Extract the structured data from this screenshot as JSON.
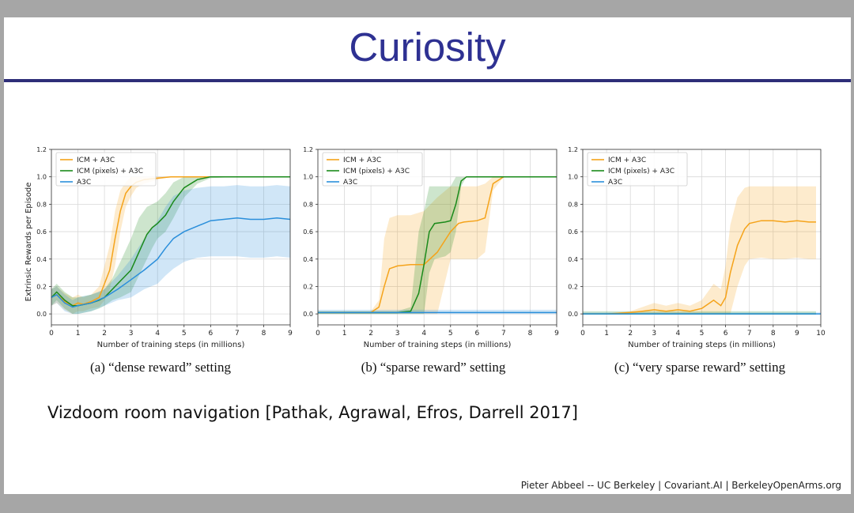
{
  "slide": {
    "title": "Curiosity",
    "citation": "Vizdoom room navigation [Pathak, Agrawal, Efros, Darrell 2017]",
    "footer": "Pieter Abbeel -- UC Berkeley | Covariant.AI | BerkeleyOpenArms.org"
  },
  "colors": {
    "title": "#2e3192",
    "rule": "#2e2e78",
    "icm": "#f5a31a",
    "icm_pixels": "#1a8a1a",
    "a3c": "#2b8fdb"
  },
  "chart_data": [
    {
      "type": "line",
      "caption": "(a) “dense reward” setting",
      "xlabel": "Number of training steps (in millions)",
      "ylabel": "Extrinsic Rewards per Episode",
      "xlim": [
        0,
        9
      ],
      "ylim": [
        -0.08,
        1.2
      ],
      "xticks": [
        "0",
        "1",
        "2",
        "3",
        "4",
        "5",
        "6",
        "7",
        "8",
        "9"
      ],
      "yticks": [
        "0.0",
        "0.2",
        "0.4",
        "0.6",
        "0.8",
        "1.0",
        "1.2"
      ],
      "grid": true,
      "legend_position": "top-left",
      "series": [
        {
          "name": "ICM + A3C",
          "x": [
            0,
            0.2,
            0.5,
            0.8,
            1.0,
            1.2,
            1.5,
            1.8,
            2.0,
            2.2,
            2.4,
            2.6,
            2.8,
            3.0,
            3.2,
            3.5,
            4.0,
            4.5,
            5.0,
            6.0,
            7.0,
            8.0,
            9.0
          ],
          "y": [
            0.12,
            0.14,
            0.09,
            0.06,
            0.08,
            0.07,
            0.09,
            0.12,
            0.22,
            0.32,
            0.55,
            0.75,
            0.88,
            0.93,
            0.96,
            0.98,
            0.99,
            1.0,
            1.0,
            1.0,
            1.0,
            1.0,
            1.0
          ],
          "lower": [
            0.06,
            0.08,
            0.03,
            0.0,
            0.02,
            0.02,
            0.04,
            0.05,
            0.1,
            0.18,
            0.35,
            0.6,
            0.78,
            0.86,
            0.92,
            0.95,
            0.98,
            1.0,
            1.0,
            1.0,
            1.0,
            1.0,
            1.0
          ],
          "upper": [
            0.18,
            0.2,
            0.15,
            0.12,
            0.14,
            0.12,
            0.14,
            0.2,
            0.35,
            0.5,
            0.75,
            0.9,
            0.96,
            1.0,
            1.0,
            1.0,
            1.0,
            1.0,
            1.0,
            1.0,
            1.0,
            1.0,
            1.0
          ]
        },
        {
          "name": "ICM (pixels) + A3C",
          "x": [
            0,
            0.2,
            0.5,
            0.8,
            1.0,
            1.5,
            1.8,
            2.0,
            2.3,
            2.6,
            3.0,
            3.3,
            3.6,
            3.8,
            4.0,
            4.3,
            4.6,
            5.0,
            5.5,
            6.0,
            7.0,
            8.0,
            9.0
          ],
          "y": [
            0.12,
            0.16,
            0.1,
            0.06,
            0.06,
            0.08,
            0.1,
            0.12,
            0.18,
            0.24,
            0.32,
            0.45,
            0.58,
            0.63,
            0.66,
            0.72,
            0.82,
            0.92,
            0.98,
            1.0,
            1.0,
            1.0,
            1.0
          ],
          "lower": [
            0.06,
            0.1,
            0.04,
            0.0,
            0.0,
            0.02,
            0.04,
            0.06,
            0.1,
            0.12,
            0.16,
            0.28,
            0.4,
            0.48,
            0.55,
            0.6,
            0.7,
            0.85,
            0.95,
            0.99,
            1.0,
            1.0,
            1.0
          ],
          "upper": [
            0.18,
            0.22,
            0.16,
            0.12,
            0.12,
            0.14,
            0.16,
            0.18,
            0.26,
            0.38,
            0.55,
            0.7,
            0.78,
            0.8,
            0.82,
            0.88,
            0.96,
            1.0,
            1.0,
            1.0,
            1.0,
            1.0,
            1.0
          ]
        },
        {
          "name": "A3C",
          "x": [
            0,
            0.2,
            0.5,
            0.8,
            1.0,
            1.5,
            2.0,
            2.5,
            3.0,
            3.5,
            4.0,
            4.3,
            4.6,
            5.0,
            5.5,
            6.0,
            6.5,
            7.0,
            7.5,
            8.0,
            8.5,
            9.0
          ],
          "y": [
            0.12,
            0.14,
            0.08,
            0.05,
            0.06,
            0.08,
            0.12,
            0.18,
            0.25,
            0.32,
            0.4,
            0.48,
            0.55,
            0.6,
            0.64,
            0.68,
            0.69,
            0.7,
            0.69,
            0.69,
            0.7,
            0.69
          ],
          "lower": [
            0.06,
            0.08,
            0.02,
            0.0,
            0.0,
            0.02,
            0.06,
            0.1,
            0.12,
            0.18,
            0.22,
            0.28,
            0.33,
            0.38,
            0.41,
            0.42,
            0.42,
            0.42,
            0.41,
            0.41,
            0.42,
            0.41
          ],
          "upper": [
            0.18,
            0.2,
            0.14,
            0.1,
            0.12,
            0.14,
            0.18,
            0.28,
            0.4,
            0.55,
            0.68,
            0.78,
            0.86,
            0.9,
            0.92,
            0.93,
            0.93,
            0.94,
            0.93,
            0.93,
            0.94,
            0.93
          ]
        }
      ]
    },
    {
      "type": "line",
      "caption": "(b) “sparse reward” setting",
      "xlabel": "Number of training steps (in millions)",
      "ylabel": "",
      "xlim": [
        0,
        9
      ],
      "ylim": [
        -0.08,
        1.2
      ],
      "xticks": [
        "0",
        "1",
        "2",
        "3",
        "4",
        "5",
        "6",
        "7",
        "8",
        "9"
      ],
      "yticks": [
        "0.0",
        "0.2",
        "0.4",
        "0.6",
        "0.8",
        "1.0",
        "1.2"
      ],
      "grid": true,
      "legend_position": "top-left",
      "series": [
        {
          "name": "ICM + A3C",
          "x": [
            0,
            1.0,
            2.0,
            2.3,
            2.5,
            2.7,
            3.0,
            3.5,
            4.0,
            4.5,
            5.0,
            5.3,
            5.5,
            6.0,
            6.3,
            6.6,
            7.0,
            8.0,
            9.0
          ],
          "y": [
            0.01,
            0.01,
            0.01,
            0.05,
            0.2,
            0.33,
            0.35,
            0.36,
            0.36,
            0.45,
            0.6,
            0.66,
            0.67,
            0.68,
            0.7,
            0.95,
            1.0,
            1.0,
            1.0
          ],
          "lower": [
            0.0,
            0.0,
            0.0,
            0.0,
            0.0,
            0.0,
            0.0,
            0.0,
            0.0,
            0.0,
            0.4,
            0.4,
            0.4,
            0.4,
            0.45,
            0.9,
            1.0,
            1.0,
            1.0
          ],
          "upper": [
            0.02,
            0.02,
            0.02,
            0.1,
            0.55,
            0.7,
            0.72,
            0.72,
            0.75,
            0.85,
            0.93,
            0.93,
            0.93,
            0.93,
            0.95,
            1.0,
            1.0,
            1.0,
            1.0
          ]
        },
        {
          "name": "ICM (pixels) + A3C",
          "x": [
            0,
            1.0,
            2.0,
            3.0,
            3.5,
            3.8,
            4.0,
            4.2,
            4.4,
            4.8,
            5.0,
            5.2,
            5.4,
            5.6,
            6.0,
            7.0,
            8.0,
            9.0
          ],
          "y": [
            0.01,
            0.01,
            0.01,
            0.01,
            0.02,
            0.15,
            0.36,
            0.6,
            0.66,
            0.67,
            0.68,
            0.8,
            0.97,
            1.0,
            1.0,
            1.0,
            1.0,
            1.0
          ],
          "lower": [
            0.0,
            0.0,
            0.0,
            0.0,
            0.0,
            0.0,
            0.0,
            0.3,
            0.4,
            0.42,
            0.45,
            0.6,
            0.93,
            1.0,
            1.0,
            1.0,
            1.0,
            1.0
          ],
          "upper": [
            0.02,
            0.02,
            0.02,
            0.02,
            0.05,
            0.6,
            0.75,
            0.93,
            0.93,
            0.93,
            0.93,
            1.0,
            1.0,
            1.0,
            1.0,
            1.0,
            1.0,
            1.0
          ]
        },
        {
          "name": "A3C",
          "x": [
            0,
            1.0,
            2.0,
            3.0,
            4.0,
            5.0,
            6.0,
            7.0,
            8.0,
            9.0
          ],
          "y": [
            0.01,
            0.01,
            0.01,
            0.01,
            0.01,
            0.01,
            0.01,
            0.01,
            0.01,
            0.01
          ],
          "lower": [
            0.0,
            0.0,
            0.0,
            0.0,
            0.0,
            0.0,
            0.0,
            0.0,
            0.0,
            0.0
          ],
          "upper": [
            0.03,
            0.03,
            0.03,
            0.03,
            0.03,
            0.03,
            0.03,
            0.03,
            0.03,
            0.03
          ]
        }
      ]
    },
    {
      "type": "line",
      "caption": "(c) “very sparse reward” setting",
      "xlabel": "Number of training steps (in millions)",
      "ylabel": "",
      "xlim": [
        0,
        10
      ],
      "ylim": [
        -0.08,
        1.2
      ],
      "xticks": [
        "0",
        "1",
        "2",
        "3",
        "4",
        "5",
        "6",
        "7",
        "8",
        "9",
        "10"
      ],
      "yticks": [
        "0.0",
        "0.2",
        "0.4",
        "0.6",
        "0.8",
        "1.0",
        "1.2"
      ],
      "grid": true,
      "legend_position": "top-left",
      "series": [
        {
          "name": "ICM + A3C",
          "x": [
            0,
            1.0,
            2.0,
            2.5,
            3.0,
            3.5,
            4.0,
            4.5,
            5.0,
            5.5,
            5.8,
            6.0,
            6.2,
            6.5,
            6.8,
            7.0,
            7.5,
            8.0,
            8.5,
            9.0,
            9.5,
            9.8
          ],
          "y": [
            0.0,
            0.0,
            0.01,
            0.02,
            0.03,
            0.02,
            0.03,
            0.02,
            0.04,
            0.1,
            0.06,
            0.12,
            0.3,
            0.5,
            0.62,
            0.66,
            0.68,
            0.68,
            0.67,
            0.68,
            0.67,
            0.67
          ],
          "lower": [
            0.0,
            0.0,
            0.0,
            0.0,
            0.0,
            0.0,
            0.0,
            0.0,
            0.0,
            0.0,
            0.0,
            0.0,
            0.0,
            0.2,
            0.35,
            0.4,
            0.41,
            0.4,
            0.4,
            0.41,
            0.4,
            0.4
          ],
          "upper": [
            0.0,
            0.0,
            0.02,
            0.05,
            0.08,
            0.06,
            0.08,
            0.06,
            0.1,
            0.22,
            0.18,
            0.35,
            0.65,
            0.85,
            0.92,
            0.93,
            0.93,
            0.93,
            0.93,
            0.93,
            0.93,
            0.93
          ]
        },
        {
          "name": "ICM (pixels) + A3C",
          "x": [
            0,
            1.0,
            2.0,
            3.0,
            4.0,
            5.0,
            6.0,
            7.0,
            8.0,
            9.0,
            9.8
          ],
          "y": [
            0.0,
            0.0,
            0.0,
            0.0,
            0.0,
            0.0,
            0.0,
            0.0,
            0.0,
            0.0,
            0.0
          ],
          "lower": [
            0.0,
            0.0,
            0.0,
            0.0,
            0.0,
            0.0,
            0.0,
            0.0,
            0.0,
            0.0,
            0.0
          ],
          "upper": [
            0.02,
            0.02,
            0.02,
            0.02,
            0.02,
            0.02,
            0.02,
            0.02,
            0.02,
            0.02,
            0.02
          ]
        },
        {
          "name": "A3C",
          "x": [
            0,
            1.0,
            2.0,
            3.0,
            4.0,
            5.0,
            6.0,
            7.0,
            8.0,
            9.0,
            10.0
          ],
          "y": [
            0.0,
            0.0,
            0.0,
            0.0,
            0.0,
            0.0,
            0.0,
            0.0,
            0.0,
            0.0,
            0.0
          ],
          "lower": [
            0.0,
            0.0,
            0.0,
            0.0,
            0.0,
            0.0,
            0.0,
            0.0,
            0.0,
            0.0,
            0.0
          ],
          "upper": [
            0.01,
            0.01,
            0.01,
            0.01,
            0.01,
            0.01,
            0.01,
            0.01,
            0.01,
            0.01,
            0.01
          ]
        }
      ]
    }
  ]
}
